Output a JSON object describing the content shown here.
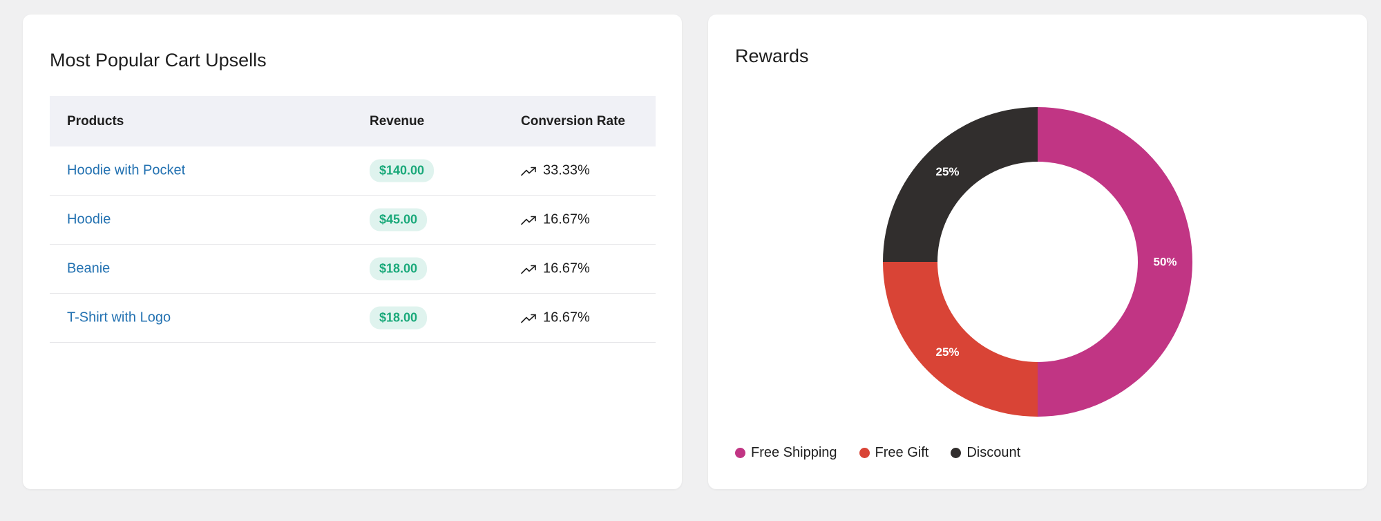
{
  "upsells": {
    "title": "Most Popular Cart Upsells",
    "columns": [
      "Products",
      "Revenue",
      "Conversion Rate"
    ],
    "rows": [
      {
        "product": "Hoodie with Pocket",
        "revenue": "$140.00",
        "conversion": "33.33%"
      },
      {
        "product": "Hoodie",
        "revenue": "$45.00",
        "conversion": "16.67%"
      },
      {
        "product": "Beanie",
        "revenue": "$18.00",
        "conversion": "16.67%"
      },
      {
        "product": "T-Shirt with Logo",
        "revenue": "$18.00",
        "conversion": "16.67%"
      }
    ],
    "trend_icon": "trending-up-icon"
  },
  "rewards": {
    "title": "Rewards",
    "chart_data": {
      "type": "pie",
      "categories": [
        "Free Shipping",
        "Free Gift",
        "Discount"
      ],
      "values": [
        50,
        25,
        25
      ],
      "value_labels": [
        "50%",
        "25%",
        "25%"
      ],
      "colors": [
        "#c13584",
        "#d94436",
        "#312e2d"
      ],
      "legend_position": "bottom-left",
      "donut": true
    }
  }
}
